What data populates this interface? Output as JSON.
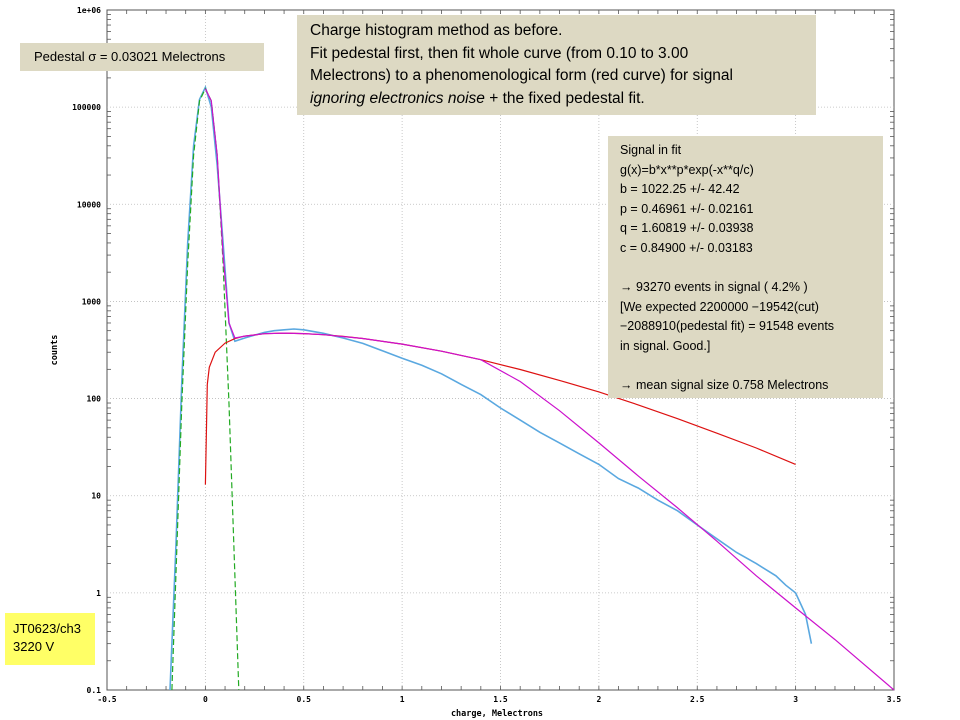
{
  "chart_data": {
    "type": "line",
    "xlabel": "charge, Melectrons",
    "ylabel": "counts",
    "xlim": [
      -0.5,
      3.5
    ],
    "ylim": [
      0.1,
      1000000
    ],
    "y_scale": "log",
    "grid": true,
    "x_ticks": [
      "-0.5",
      "0",
      "0.5",
      "1",
      "1.5",
      "2",
      "2.5",
      "3",
      "3.5"
    ],
    "y_ticks": [
      "0.1",
      "1",
      "10",
      "100",
      "1000",
      "10000",
      "100000",
      "1e+06"
    ],
    "series": [
      {
        "color": "#5aa8e0",
        "x": [
          -0.18,
          -0.15,
          -0.12,
          -0.09,
          -0.06,
          -0.03,
          0.0,
          0.03,
          0.06,
          0.09,
          0.12,
          0.15,
          0.2,
          0.25,
          0.3,
          0.35,
          0.4,
          0.45,
          0.5,
          0.6,
          0.7,
          0.8,
          0.9,
          1.0,
          1.1,
          1.2,
          1.3,
          1.4,
          1.5,
          1.6,
          1.7,
          1.8,
          1.9,
          2.0,
          2.1,
          2.2,
          2.3,
          2.4,
          2.5,
          2.6,
          2.7,
          2.8,
          2.9,
          2.95,
          3.0,
          3.05,
          3.08
        ],
        "y": [
          0.1,
          3,
          150,
          4000,
          40000,
          120000,
          160000,
          100000,
          25000,
          4000,
          600,
          390,
          420,
          450,
          480,
          500,
          510,
          520,
          510,
          470,
          420,
          370,
          310,
          260,
          220,
          180,
          140,
          110,
          80,
          60,
          45,
          35,
          27,
          21,
          15,
          12,
          9,
          7,
          5,
          3.6,
          2.6,
          2,
          1.5,
          1.2,
          1,
          0.6,
          0.3
        ]
      },
      {
        "color": "#22aa22",
        "x": [
          -0.17,
          -0.15,
          -0.12,
          -0.09,
          -0.06,
          -0.03,
          0.0,
          0.03,
          0.06,
          0.09,
          0.12,
          0.15,
          0.17
        ],
        "y": [
          0.1,
          1.5,
          88,
          2450,
          32000,
          116000,
          155000,
          116000,
          32000,
          2450,
          88,
          1.5,
          0.1
        ]
      },
      {
        "color": "#dd1111",
        "x": [
          0.0,
          0.01,
          0.02,
          0.05,
          0.1,
          0.15,
          0.2,
          0.3,
          0.4,
          0.5,
          0.6,
          0.7,
          0.8,
          1.0,
          1.2,
          1.4,
          1.6,
          1.8,
          2.0,
          2.2,
          2.4,
          2.6,
          2.8,
          3.0
        ],
        "y": [
          13,
          140,
          210,
          300,
          372,
          414,
          440,
          465,
          472,
          467,
          455,
          437,
          415,
          364,
          307,
          251,
          199,
          154,
          117,
          86,
          62,
          44,
          31,
          21
        ]
      },
      {
        "color": "#cc11cc",
        "x": [
          0.0,
          0.03,
          0.06,
          0.09,
          0.12,
          0.15,
          0.2,
          0.3,
          0.4,
          0.5,
          0.6,
          0.8,
          1.0,
          1.2,
          1.4,
          1.6,
          1.8,
          2.0,
          2.2,
          2.4,
          2.6,
          2.8,
          3.0,
          3.2,
          3.5
        ],
        "y": [
          155000,
          116000,
          32000,
          3000,
          600,
          420,
          440,
          465,
          472,
          467,
          455,
          415,
          364,
          307,
          251,
          150,
          75,
          35,
          16,
          7.5,
          3.4,
          1.5,
          0.7,
          0.33,
          0.1
        ]
      }
    ]
  },
  "pedestal_label": "Pedestal σ =  0.03021 Melectrons",
  "title_box": {
    "line1": "Charge histogram method as before.",
    "line2": "Fit pedestal first, then fit whole curve (from 0.10 to 3.00",
    "line3": "Melectrons) to a phenomenological form (red curve) for signal",
    "line4_italic": "ignoring electronics noise",
    "line4_rest": " + the fixed pedestal fit."
  },
  "fit_box": {
    "l1": "Signal in fit",
    "l2": "g(x)=b*x**p*exp(-x**q/c)",
    "l3": "b = 1022.25  +/- 42.42",
    "l4": "p = 0.46961  +/- 0.02161",
    "l5": "q = 1.60819  +/- 0.03938",
    "l6": "c = 0.84900   +/- 0.03183",
    "arrow": "→",
    "l7": " 93270 events in signal ( 4.2% )",
    "l8": "[We expected 2200000 −19542(cut)",
    "l9": "−2088910(pedestal fit) =  91548 events",
    "l10": "in signal. Good.]",
    "l11": " mean signal size 0.758 Melectrons"
  },
  "id_box": {
    "line1": "JT0623/ch3",
    "line2": "3220 V"
  }
}
